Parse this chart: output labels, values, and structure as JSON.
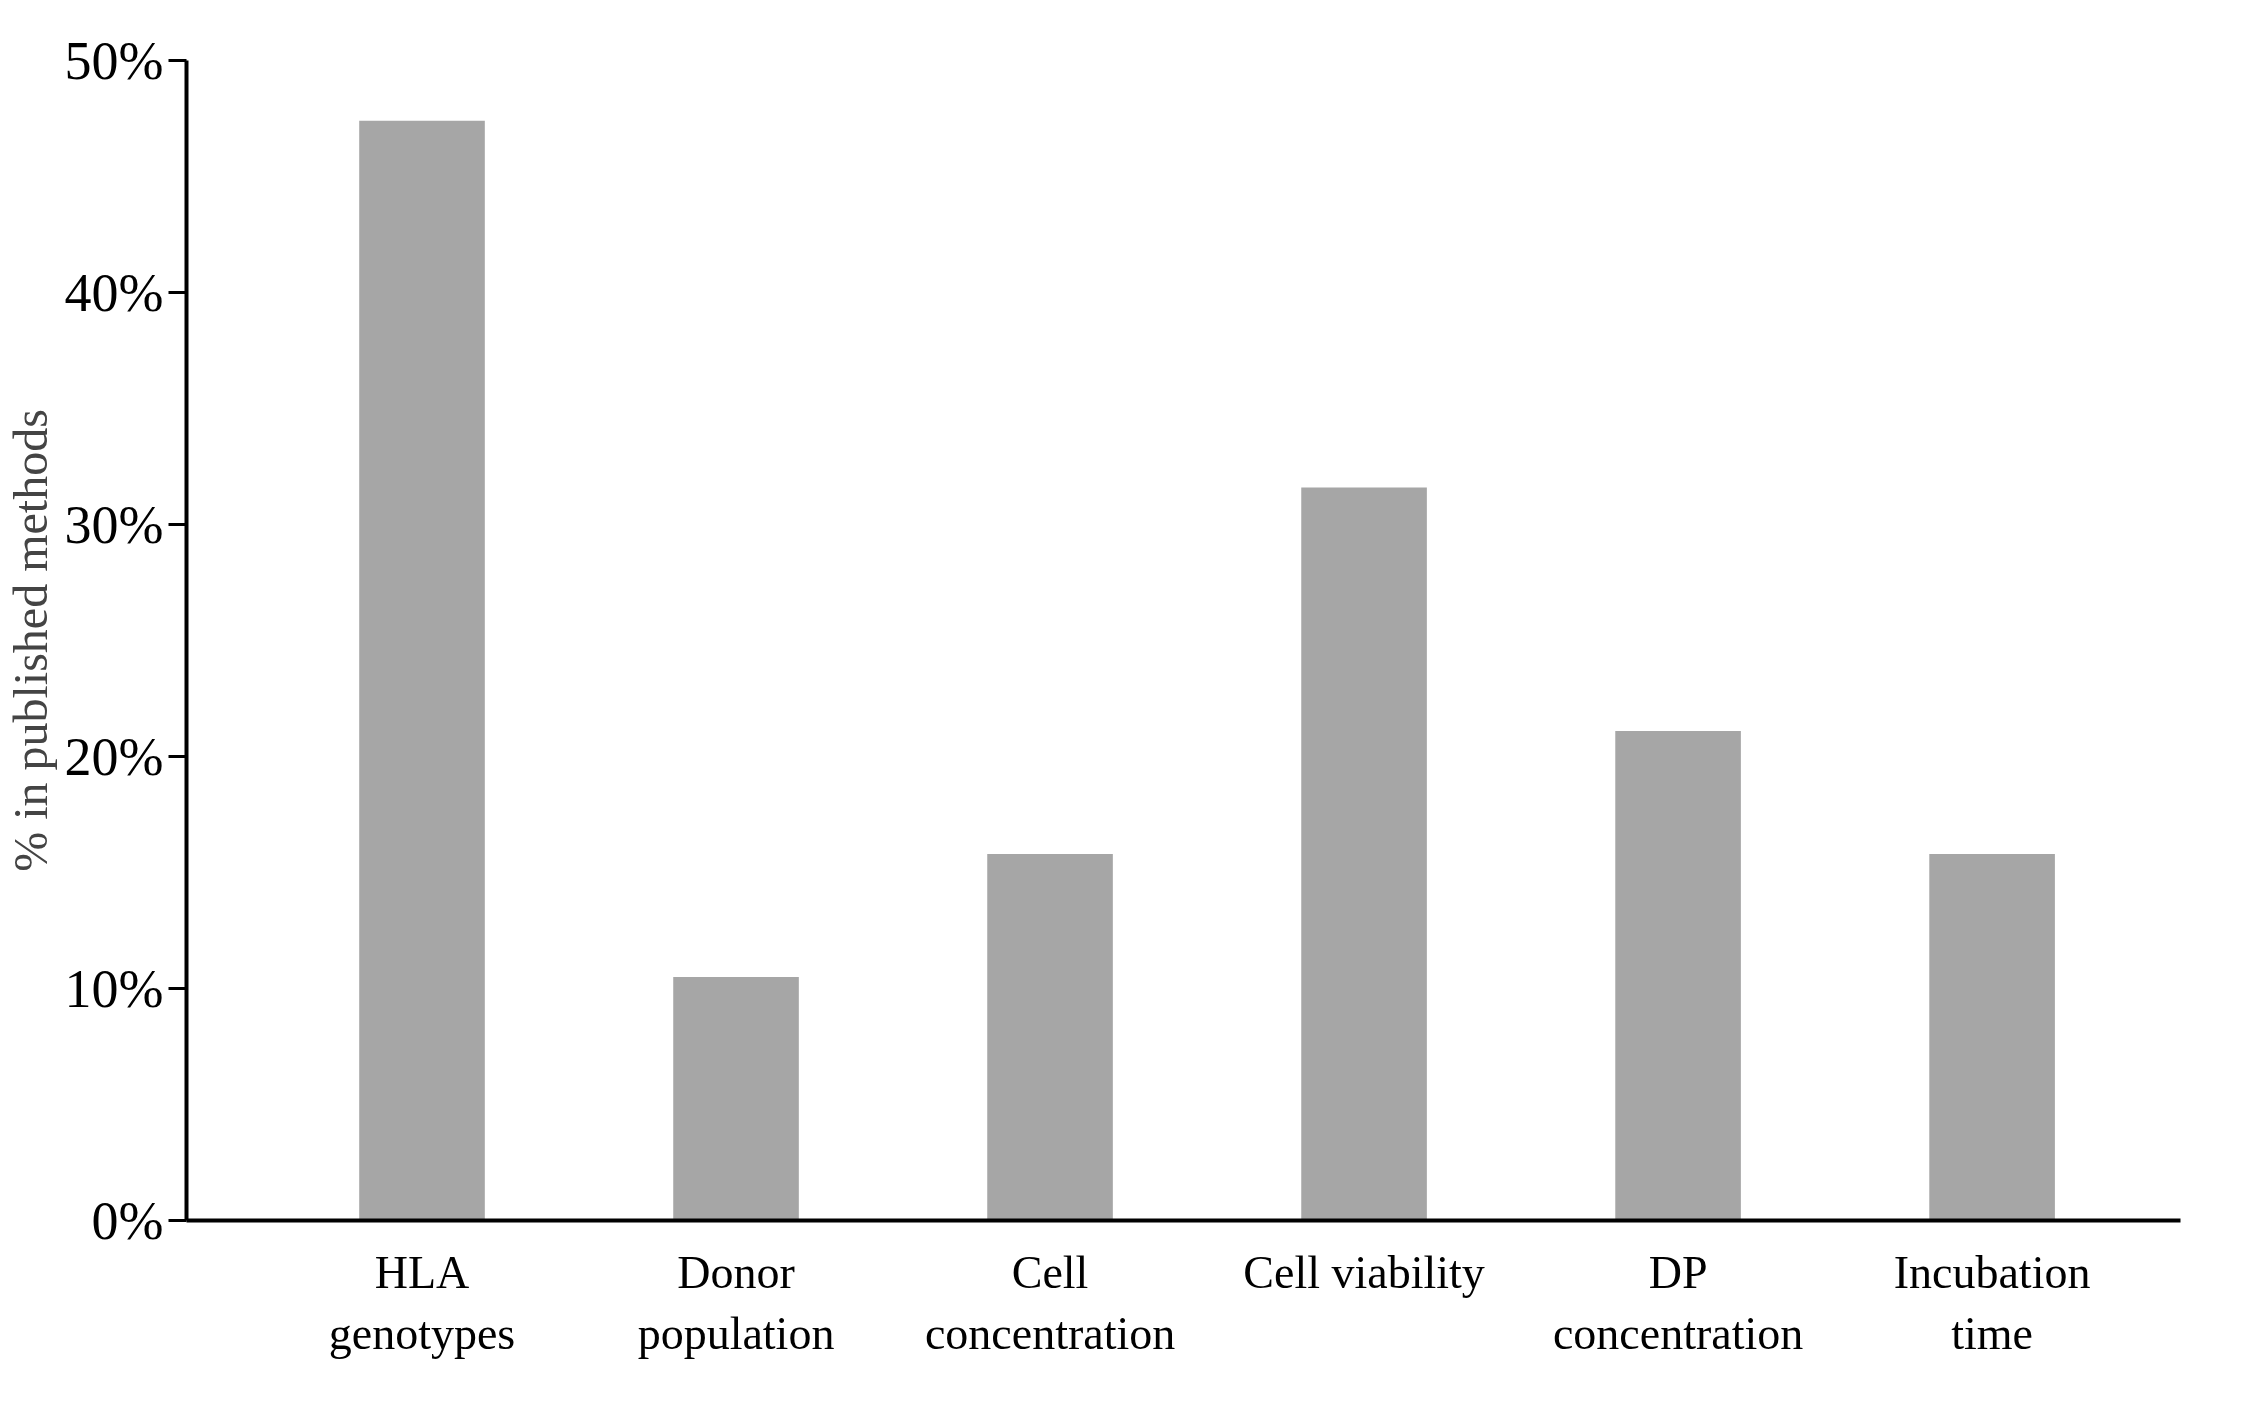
{
  "chart_data": {
    "type": "bar",
    "ylabel": "% in published methods",
    "categories": [
      "HLA\ngenotypes",
      "Donor\npopulation",
      "Cell\nconcentration",
      "Cell viability",
      "DP\nconcentration",
      "Incubation\ntime"
    ],
    "values": [
      47.4,
      10.5,
      15.8,
      31.6,
      21.1,
      15.8
    ],
    "color": "#a6a6a6",
    "ylim": [
      0,
      50
    ],
    "yticks": [
      {
        "value": 0,
        "label": "0%"
      },
      {
        "value": 10,
        "label": "10%"
      },
      {
        "value": 20,
        "label": "20%"
      },
      {
        "value": 30,
        "label": "30%"
      },
      {
        "value": 40,
        "label": "40%"
      },
      {
        "value": 50,
        "label": "50%"
      }
    ],
    "grid": false
  }
}
